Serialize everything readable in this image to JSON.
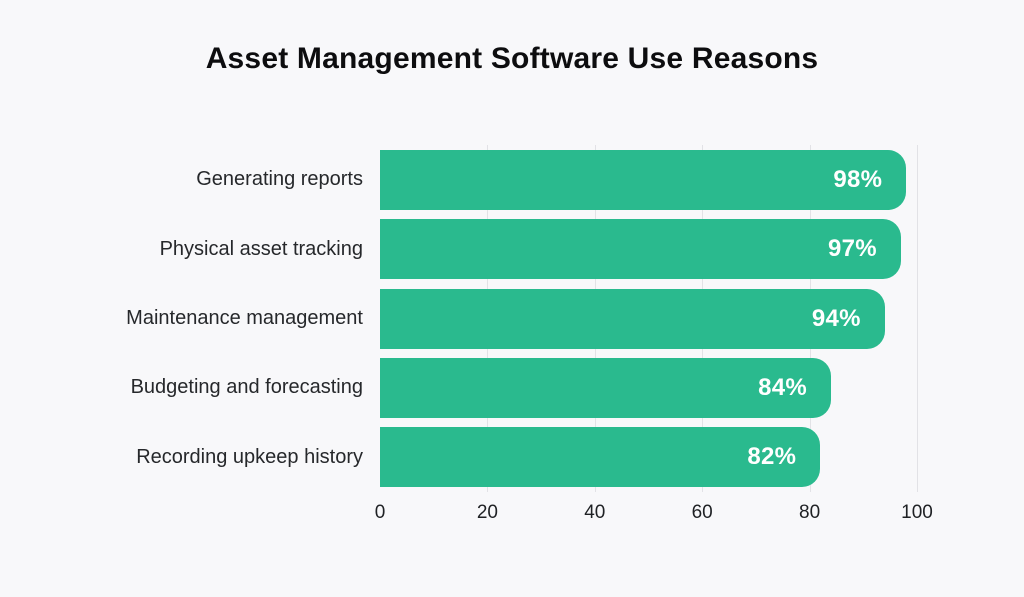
{
  "chart_data": {
    "type": "bar",
    "orientation": "horizontal",
    "title": "Asset Management Software Use Reasons",
    "categories": [
      "Generating reports",
      "Physical asset tracking",
      "Maintenance management",
      "Budgeting and forecasting",
      "Recording upkeep history"
    ],
    "values": [
      98,
      97,
      94,
      84,
      82
    ],
    "value_labels": [
      "98%",
      "97%",
      "94%",
      "84%",
      "82%"
    ],
    "x_ticks": [
      0,
      20,
      40,
      60,
      80,
      100
    ],
    "xlim": [
      0,
      100
    ],
    "xlabel": "",
    "ylabel": "",
    "grid": "vertical-light-behind-bars",
    "legend": "none",
    "colors": {
      "bar": "#2aba8e",
      "value_text": "#ffffff",
      "label_text": "#26282b",
      "tick_text": "#1f2124",
      "gridline": "#e2e2e6",
      "background": "#f8f8fa",
      "title_text": "#0d0d0f"
    }
  }
}
